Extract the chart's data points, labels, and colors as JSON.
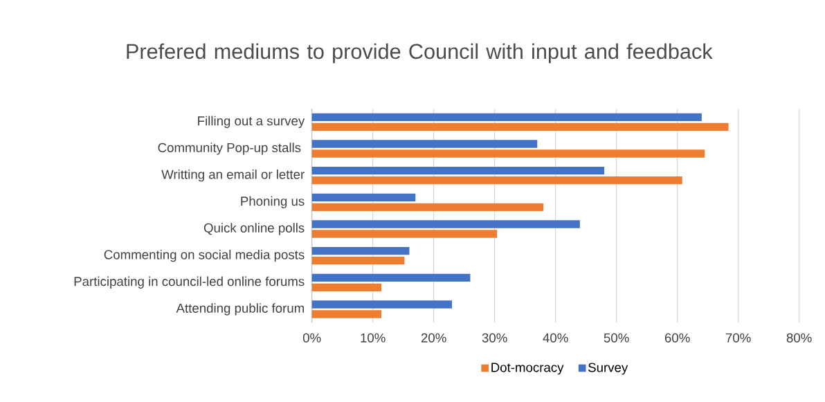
{
  "chart_data": {
    "type": "bar",
    "orientation": "horizontal",
    "title": "Prefered mediums to provide Council with input and feedback",
    "categories": [
      "Filling out a survey",
      "Community Pop-up stalls ",
      "Writting an email or letter",
      "Phoning us",
      "Quick online polls",
      "Commenting on social media posts",
      "Participating in council-led online forums",
      "Attending public forum"
    ],
    "series": [
      {
        "name": "Dot-mocracy",
        "color": "#ed7d31",
        "values": [
          68.4,
          64.5,
          60.8,
          38.0,
          30.4,
          15.2,
          11.4,
          11.4
        ]
      },
      {
        "name": "Survey",
        "color": "#4472c4",
        "values": [
          64.0,
          37.0,
          48.0,
          17.0,
          44.0,
          16.0,
          26.0,
          23.0
        ]
      }
    ],
    "xlim": [
      0,
      80
    ],
    "xticks": [
      {
        "value": 0,
        "label": "0%"
      },
      {
        "value": 10,
        "label": "10%"
      },
      {
        "value": 20,
        "label": "20%"
      },
      {
        "value": 30,
        "label": "30%"
      },
      {
        "value": 40,
        "label": "40%"
      },
      {
        "value": 50,
        "label": "50%"
      },
      {
        "value": 60,
        "label": "60%"
      },
      {
        "value": 70,
        "label": "70%"
      },
      {
        "value": 80,
        "label": "80%"
      }
    ],
    "grid": "x",
    "legend": "bottom"
  }
}
